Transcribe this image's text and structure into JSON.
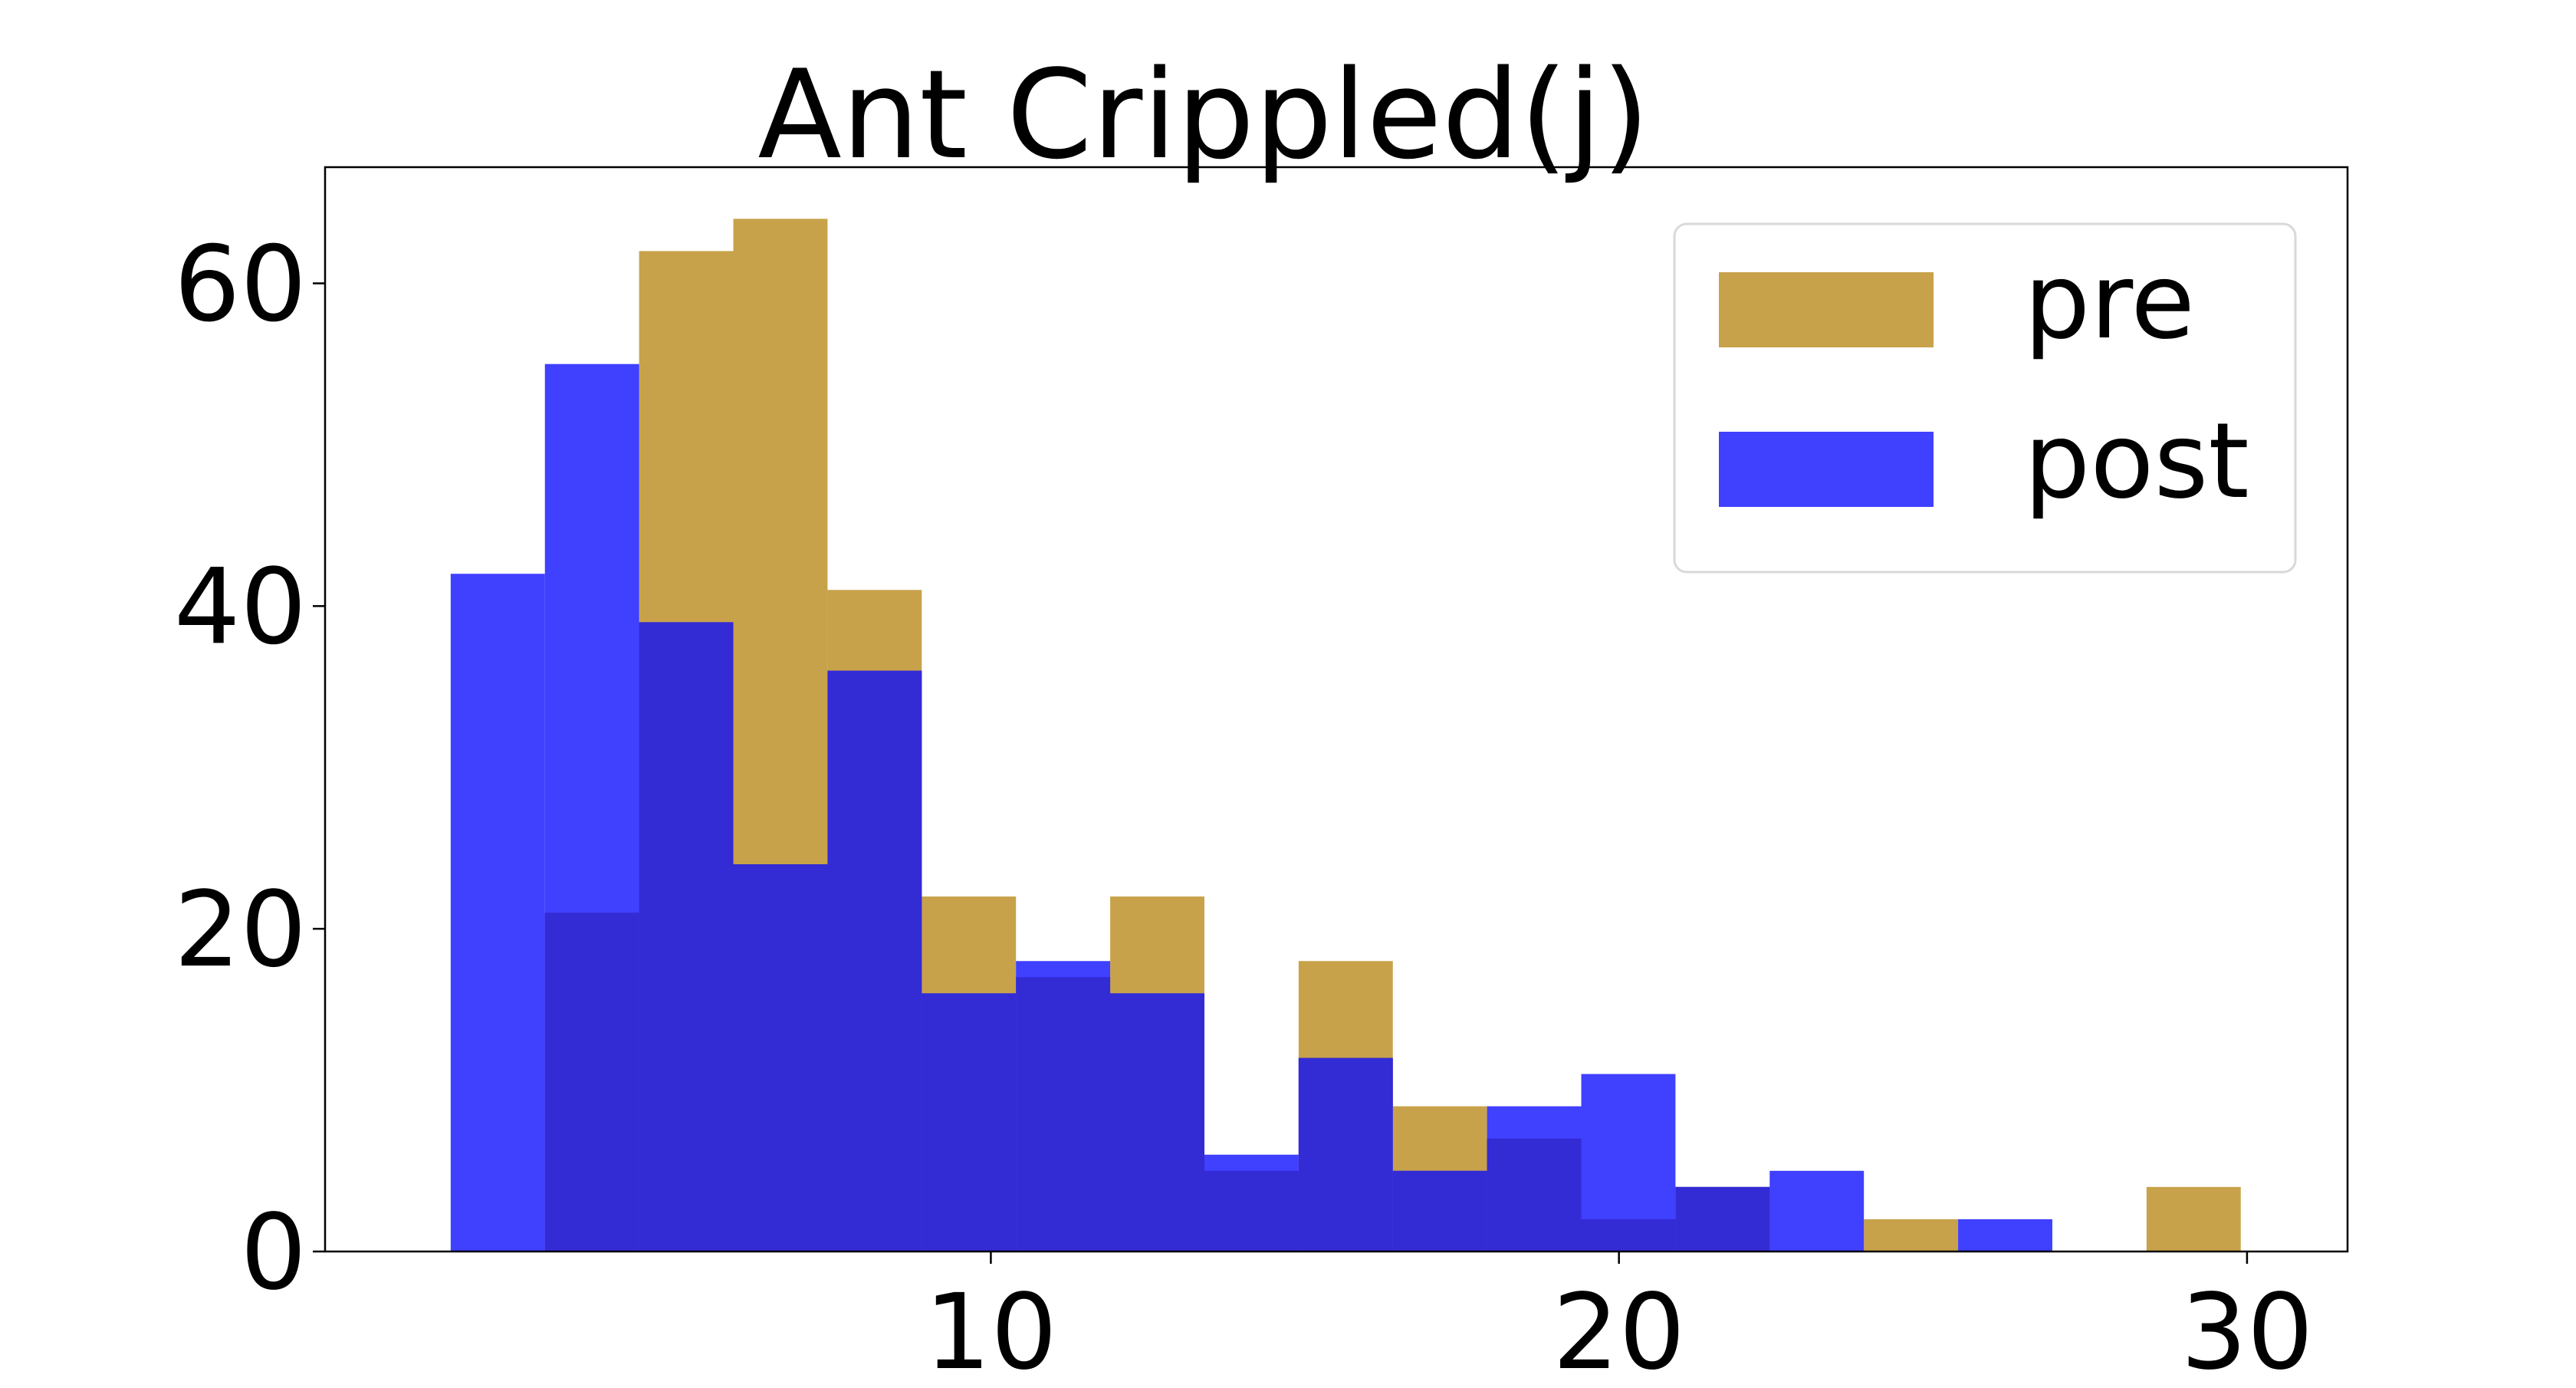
{
  "chart_data": {
    "type": "bar",
    "subtype": "overlapping-histogram",
    "title": "Ant Crippled(j)",
    "xlabel": "",
    "ylabel": "",
    "xlim": [
      -0.6,
      31.6
    ],
    "ylim": [
      0,
      67.2
    ],
    "x_ticks": [
      10,
      20,
      30
    ],
    "y_ticks": [
      0,
      20,
      40,
      60
    ],
    "grid": false,
    "legend_position": "top-right",
    "bin_edges": [
      1.4,
      2.9,
      4.4,
      5.9,
      7.4,
      8.9,
      10.4,
      11.9,
      13.4,
      14.9,
      16.4,
      17.9,
      19.4,
      20.9,
      22.4,
      23.9,
      25.4,
      26.9,
      28.4,
      29.9
    ],
    "series": [
      {
        "name": "pre",
        "color": "#c8a24a",
        "values": [
          0,
          21,
          62,
          64,
          41,
          22,
          17,
          22,
          5,
          18,
          9,
          7,
          2,
          4,
          0,
          2,
          0,
          0,
          4
        ]
      },
      {
        "name": "post",
        "color": "#4040ff",
        "values": [
          42,
          55,
          39,
          24,
          36,
          16,
          18,
          16,
          6,
          12,
          5,
          9,
          11,
          4,
          5,
          0,
          2,
          0,
          0
        ]
      }
    ],
    "overlap_color": "#332bd4"
  }
}
